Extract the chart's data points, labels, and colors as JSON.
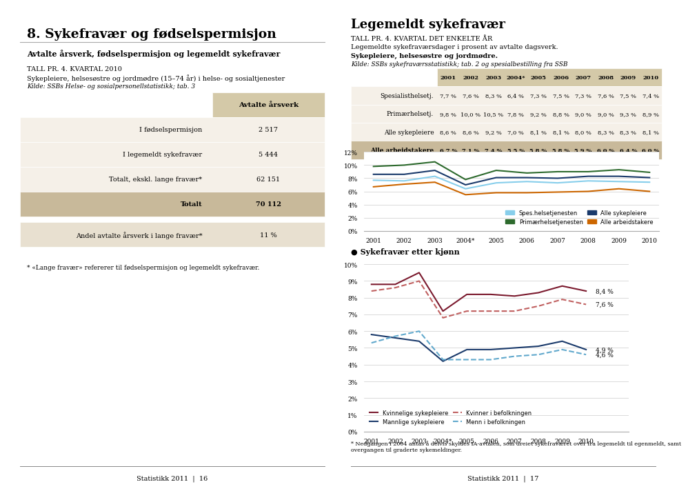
{
  "page_title": "8. Sykefravær og fødselspermisjon",
  "left_section_title": "Avtalte årsverk, fødselspermisjon og legemeldt sykefravær",
  "left_subtitle1": "TALL PR. 4. KVARTAL 2010",
  "left_subtitle2": "Sykepleiere, helsesøstre og jordmødre (15–74 år) i helse- og sosialtjenester",
  "left_kilde": "Kilde: SSBs Helse- og sosialpersonellstatistikk; tab. 3",
  "table_header": "Avtalte årsverk",
  "table_rows": [
    [
      "I fødselspermisjon",
      "2 517"
    ],
    [
      "I legemeldt sykefravær",
      "5 444"
    ],
    [
      "Totalt, ekskl. lange fravær*",
      "62 151"
    ],
    [
      "Totalt",
      "70 112"
    ]
  ],
  "table_extra_row": [
    "Andel avtalte årsverk i lange fravær*",
    "11 %"
  ],
  "footnote_left": "* «Lange fravær» refererer til fødselspermisjon og legemeldt sykefravær.",
  "right_title": "Legemeldt sykefravær",
  "right_subtitle1": "TALL PR. 4. KVARTAL DET ENKELTE ÅR",
  "right_subtitle2": "Legemeldte sykefraværsdager i prosent av avtalte dagsverk.",
  "right_subtitle3": "Sykepleiere, helsesøstre og jordmødre.",
  "right_kilde": "Kilde: SSBs sykefraværsstatistikk; tab. 2 og spesialbestilling fra SSB",
  "years": [
    "2001",
    "2002",
    "2003",
    "2004*",
    "2005",
    "2006",
    "2007",
    "2008",
    "2009",
    "2010"
  ],
  "table2_header": [
    "",
    "2001",
    "2002",
    "2003",
    "2004*",
    "2005",
    "2006",
    "2007",
    "2008",
    "2009",
    "2010"
  ],
  "table2_rows": [
    [
      "Spesialisthelsetj.",
      "7,7 %",
      "7,6 %",
      "8,3 %",
      "6,4 %",
      "7,3 %",
      "7,5 %",
      "7,3 %",
      "7,6 %",
      "7,5 %",
      "7,4 %"
    ],
    [
      "Primærhelsetj.",
      "9,8 %",
      "10,0 %",
      "10,5 %",
      "7,8 %",
      "9,2 %",
      "8,8 %",
      "9,0 %",
      "9,0 %",
      "9,3 %",
      "8,9 %"
    ],
    [
      "Alle sykepleiere",
      "8,6 %",
      "8,6 %",
      "9,2 %",
      "7,0 %",
      "8,1 %",
      "8,1 %",
      "8,0 %",
      "8,3 %",
      "8,3 %",
      "8,1 %"
    ],
    [
      "Alle arbeidstakere",
      "6,7 %",
      "7,1 %",
      "7,4 %",
      "5,5 %",
      "5,8 %",
      "5,8 %",
      "5,9 %",
      "6,0 %",
      "6,4 %",
      "6,0 %"
    ]
  ],
  "chart1_spes": [
    7.7,
    7.6,
    8.3,
    6.4,
    7.3,
    7.5,
    7.3,
    7.6,
    7.5,
    7.4
  ],
  "chart1_prim": [
    9.8,
    10.0,
    10.5,
    7.8,
    9.2,
    8.8,
    9.0,
    9.0,
    9.3,
    8.9
  ],
  "chart1_alle_syk": [
    8.6,
    8.6,
    9.2,
    7.0,
    8.1,
    8.1,
    8.0,
    8.3,
    8.3,
    8.1
  ],
  "chart1_alle_arb": [
    6.7,
    7.1,
    7.4,
    5.5,
    5.8,
    5.8,
    5.9,
    6.0,
    6.4,
    6.0
  ],
  "chart1_color_spes": "#87CEEB",
  "chart1_color_prim": "#2d6a2d",
  "chart1_color_alle_syk": "#1a3a6b",
  "chart1_color_alle_arb": "#cc6600",
  "chart2_title": "Sykefravær etter kjønn",
  "chart2_kvinnelige_syk": [
    8.8,
    8.8,
    9.5,
    7.2,
    8.2,
    8.2,
    8.1,
    8.3,
    8.7,
    8.4
  ],
  "chart2_kvinner_bef": [
    8.4,
    8.6,
    9.0,
    6.8,
    7.2,
    7.2,
    7.2,
    7.5,
    7.9,
    7.6
  ],
  "chart2_mannlige_syk": [
    5.8,
    5.6,
    5.4,
    4.2,
    4.9,
    4.9,
    5.0,
    5.1,
    5.4,
    4.9
  ],
  "chart2_menn_bef": [
    5.3,
    5.7,
    6.0,
    4.3,
    4.3,
    4.3,
    4.5,
    4.6,
    4.9,
    4.6
  ],
  "chart2_color_kvinn_syk": "#7b1a2e",
  "chart2_color_kvinn_bef": "#c06060",
  "chart2_color_mann_syk": "#1a3a6b",
  "chart2_color_mann_bef": "#60a8cc",
  "chart2_end_labels": [
    "8,4 %",
    "7,6 %",
    "4,9 %",
    "4,6 %"
  ],
  "footnote_right": "* Nedgangen i 2004 antas å delvis skyldes IA-avtalen, som dreiet sykefraværet over fra legemeldt til egenmeldt, samt\novergangen til graderte sykemeldinger.",
  "footer_left": "Statistikk 2011  |  16",
  "footer_right": "Statistikk 2011  |  17",
  "bg_color": "#ffffff",
  "table_bg_light": "#f5f0e8",
  "table_bg_header": "#d4c9a8",
  "table_bg_total": "#c8b99a",
  "table_bg_extra": "#e8e0d0"
}
